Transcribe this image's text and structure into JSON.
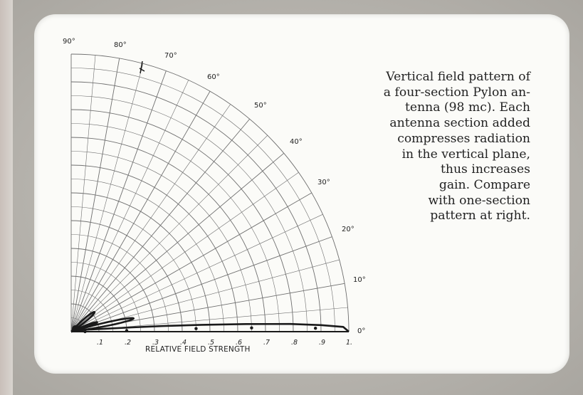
{
  "caption_lines": [
    "Vertical field pattern of",
    "a four-section Pylon an-",
    "tenna (98 mc). Each",
    "antenna section added",
    "compresses radiation",
    "in the vertical plane,",
    "thus increases",
    "gain. Compare",
    "with one-section",
    "pattern at right."
  ],
  "angle_labels": [
    "90°",
    "80°",
    "70°",
    "60°",
    "50°",
    "40°",
    "30°",
    "20°",
    "10°",
    "0°"
  ],
  "radial_tick_labels": [
    ".1",
    ".2",
    ".3",
    ".4",
    ".5",
    ".6",
    ".7",
    ".8",
    ".9",
    "1."
  ],
  "axis_title": "RELATIVE FIELD STRENGTH",
  "chart_data": {
    "type": "polar",
    "xlabel": "RELATIVE FIELD STRENGTH",
    "angle_range_deg": [
      0,
      90
    ],
    "radius_range": [
      0,
      1
    ],
    "main_lobe": [
      [
        0,
        1.0
      ],
      [
        1,
        0.98
      ],
      [
        1.5,
        0.9
      ],
      [
        2,
        0.79
      ],
      [
        2.5,
        0.63
      ],
      [
        3,
        0.47
      ],
      [
        3.5,
        0.33
      ],
      [
        4,
        0.22
      ],
      [
        5,
        0.12
      ],
      [
        8,
        0.05
      ],
      [
        12,
        0.03
      ]
    ],
    "side_lobes": [
      {
        "center_deg": 12,
        "max": 0.23
      },
      {
        "center_deg": 20,
        "max": 0.1
      },
      {
        "center_deg": 40,
        "max": 0.11
      }
    ],
    "colors": {
      "grid": "#6f6f6f",
      "pattern": "#1a1a1a",
      "background": "#fbfbf8"
    }
  }
}
